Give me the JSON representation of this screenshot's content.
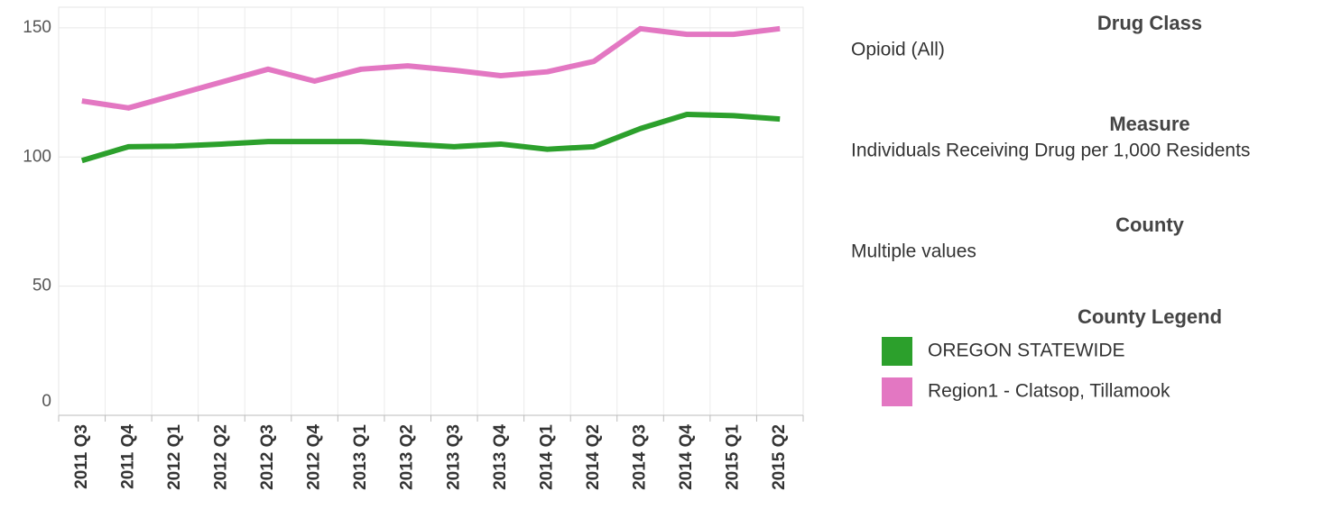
{
  "chart_data": {
    "type": "line",
    "categories": [
      "2011 Q3",
      "2011 Q4",
      "2012 Q1",
      "2012 Q2",
      "2012 Q3",
      "2012 Q4",
      "2013 Q1",
      "2013 Q2",
      "2013 Q3",
      "2013 Q4",
      "2014 Q1",
      "2014 Q2",
      "2014 Q3",
      "2014 Q4",
      "2015 Q1",
      "2015 Q2"
    ],
    "series": [
      {
        "name": "OREGON STATEWIDE",
        "color": "#2ca02c",
        "values": [
          98.6,
          104,
          104.2,
          105,
          106,
          106,
          106,
          105,
          104,
          105,
          103,
          104,
          111,
          116.5,
          116,
          114.7
        ]
      },
      {
        "name": "Region1 - Clatsop, Tillamook",
        "color": "#e377c2",
        "values": [
          121.7,
          119,
          124,
          129,
          134,
          129.4,
          134,
          135.3,
          133.6,
          131.5,
          133,
          137,
          149.7,
          147.5,
          147.5,
          149.7
        ]
      }
    ],
    "ylim": [
      0,
      158
    ],
    "yticks": [
      0,
      50,
      100,
      150
    ],
    "grid": true,
    "legend_title": "County Legend",
    "filters": [
      {
        "title": "Drug Class",
        "value": "Opioid (All)"
      },
      {
        "title": "Measure",
        "value": "Individuals Receiving Drug per 1,000 Residents"
      },
      {
        "title": "County",
        "value": "Multiple values"
      }
    ]
  }
}
